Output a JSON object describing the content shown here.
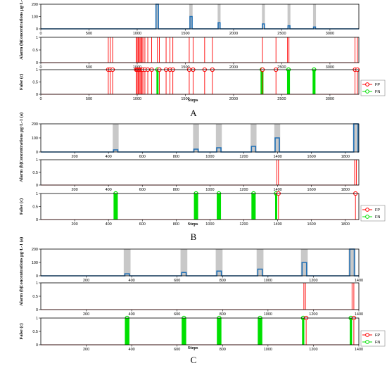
{
  "colors": {
    "conc_line": "#1f6fb5",
    "gray_band": "#c8c8c8",
    "alarm_line": "#ff0000",
    "fp": "#ff0000",
    "fn": "#00e000",
    "axis": "#000000"
  },
  "chart_data": [
    {
      "type": "line",
      "figure": "A",
      "caption": "A",
      "xlabel": "Steps",
      "xlim": [
        0,
        3300
      ],
      "xticks": [
        0,
        500,
        1000,
        1500,
        2000,
        2500,
        3000
      ],
      "legend": {
        "fp": "FP",
        "fn": "FN",
        "placement": "right"
      },
      "panels": [
        {
          "panel": "a",
          "ylabel": "Concentrations μg·L-1 (a)",
          "ylim": [
            0,
            200
          ],
          "yticks": [
            0,
            100,
            200
          ],
          "series": [
            {
              "name": "concentration",
              "pulses": [
                {
                  "start": 1195,
                  "end": 1220,
                  "value": 200
                },
                {
                  "start": 1548,
                  "end": 1570,
                  "value": 100
                },
                {
                  "start": 1840,
                  "end": 1860,
                  "value": 50
                },
                {
                  "start": 2300,
                  "end": 2320,
                  "value": 40
                },
                {
                  "start": 2565,
                  "end": 2585,
                  "value": 25
                },
                {
                  "start": 2830,
                  "end": 2850,
                  "value": 15
                }
              ]
            }
          ],
          "gray_bands": [
            [
              1190,
              1225
            ],
            [
              1540,
              1575
            ],
            [
              1835,
              1865
            ],
            [
              2295,
              2325
            ],
            [
              2560,
              2590
            ],
            [
              2825,
              2855
            ]
          ]
        },
        {
          "panel": "b",
          "ylabel": "Alarm (b)",
          "ylim": [
            0,
            1
          ],
          "yticks": [
            0,
            0.5,
            1
          ],
          "alarms": [
            700,
            720,
            745,
            990,
            1000,
            1010,
            1020,
            1030,
            1040,
            1050,
            1060,
            1080,
            1110,
            1150,
            1210,
            1230,
            1300,
            1340,
            1370,
            1540,
            1580,
            1700,
            1780,
            2300,
            2440,
            2560,
            2575,
            3260,
            3285
          ]
        },
        {
          "panel": "c",
          "ylabel": "False (c)",
          "ylim": [
            0,
            1
          ],
          "yticks": [
            0,
            0.5,
            1
          ],
          "fp": [
            700,
            720,
            745,
            990,
            1000,
            1010,
            1020,
            1030,
            1040,
            1050,
            1060,
            1080,
            1110,
            1150,
            1230,
            1300,
            1340,
            1370,
            1540,
            1580,
            1700,
            1780,
            2300,
            2440,
            3260,
            3285
          ],
          "fn_bands": [
            [
              1200,
              1210
            ],
            [
              2280,
              2310
            ],
            [
              2555,
              2585
            ],
            [
              2820,
              2850
            ]
          ]
        }
      ]
    },
    {
      "type": "line",
      "figure": "B",
      "caption": "B",
      "xlabel": "Steps",
      "xlim": [
        0,
        1880
      ],
      "xticks": [
        200,
        400,
        600,
        800,
        1000,
        1200,
        1400,
        1600,
        1800
      ],
      "legend": {
        "fp": "FP",
        "fn": "FN",
        "placement": "right"
      },
      "panels": [
        {
          "panel": "a",
          "ylabel": "Concentrations μg·L-1 (a)",
          "ylim": [
            0,
            200
          ],
          "yticks": [
            0,
            100,
            200
          ],
          "series": [
            {
              "name": "concentration",
              "pulses": [
                {
                  "start": 430,
                  "end": 455,
                  "value": 15
                },
                {
                  "start": 905,
                  "end": 930,
                  "value": 20
                },
                {
                  "start": 1040,
                  "end": 1065,
                  "value": 30
                },
                {
                  "start": 1245,
                  "end": 1270,
                  "value": 40
                },
                {
                  "start": 1385,
                  "end": 1410,
                  "value": 100
                },
                {
                  "start": 1850,
                  "end": 1875,
                  "value": 200
                }
              ]
            }
          ],
          "gray_bands": [
            [
              425,
              460
            ],
            [
              900,
              935
            ],
            [
              1035,
              1070
            ],
            [
              1240,
              1275
            ],
            [
              1380,
              1415
            ],
            [
              1845,
              1880
            ]
          ]
        },
        {
          "panel": "b",
          "ylabel": "Alarm (b)",
          "ylim": [
            0,
            1
          ],
          "yticks": [
            0,
            0.5,
            1
          ],
          "alarms": [
            1395,
            1405,
            1855,
            1865
          ]
        },
        {
          "panel": "c",
          "ylabel": "False (c)",
          "ylim": [
            0,
            1
          ],
          "yticks": [
            0,
            0.5,
            1
          ],
          "fp": [
            1405,
            1860
          ],
          "fn_bands": [
            [
              430,
              455
            ],
            [
              905,
              930
            ],
            [
              1040,
              1065
            ],
            [
              1245,
              1270
            ],
            [
              1385,
              1395
            ]
          ]
        }
      ]
    },
    {
      "type": "line",
      "figure": "C",
      "caption": "C",
      "xlabel": "Steps",
      "xlim": [
        0,
        1400
      ],
      "xticks": [
        200,
        400,
        600,
        800,
        1000,
        1200,
        1400
      ],
      "legend": {
        "fp": "FP",
        "fn": "FN",
        "placement": "right"
      },
      "panels": [
        {
          "panel": "a",
          "ylabel": "Concentrations μg·L-1 (a)",
          "ylim": [
            0,
            200
          ],
          "yticks": [
            0,
            100,
            200
          ],
          "series": [
            {
              "name": "concentration",
              "pulses": [
                {
                  "start": 370,
                  "end": 390,
                  "value": 15
                },
                {
                  "start": 620,
                  "end": 640,
                  "value": 25
                },
                {
                  "start": 775,
                  "end": 795,
                  "value": 35
                },
                {
                  "start": 955,
                  "end": 975,
                  "value": 50
                },
                {
                  "start": 1150,
                  "end": 1170,
                  "value": 100
                },
                {
                  "start": 1360,
                  "end": 1380,
                  "value": 200
                }
              ]
            }
          ],
          "gray_bands": [
            [
              365,
              395
            ],
            [
              615,
              645
            ],
            [
              770,
              800
            ],
            [
              950,
              980
            ],
            [
              1145,
              1175
            ],
            [
              1355,
              1385
            ]
          ]
        },
        {
          "panel": "b",
          "ylabel": "Alarm (b)",
          "ylim": [
            0,
            1
          ],
          "yticks": [
            0,
            0.5,
            1
          ],
          "alarms": [
            1158,
            1165,
            1370,
            1378
          ]
        },
        {
          "panel": "c",
          "ylabel": "False (c)",
          "ylim": [
            0,
            1
          ],
          "yticks": [
            0,
            0.5,
            1
          ],
          "fp": [
            1168,
            1378
          ],
          "fn_bands": [
            [
              370,
              390
            ],
            [
              620,
              640
            ],
            [
              775,
              795
            ],
            [
              955,
              975
            ],
            [
              1150,
              1160
            ],
            [
              1360,
              1370
            ]
          ]
        }
      ]
    }
  ]
}
